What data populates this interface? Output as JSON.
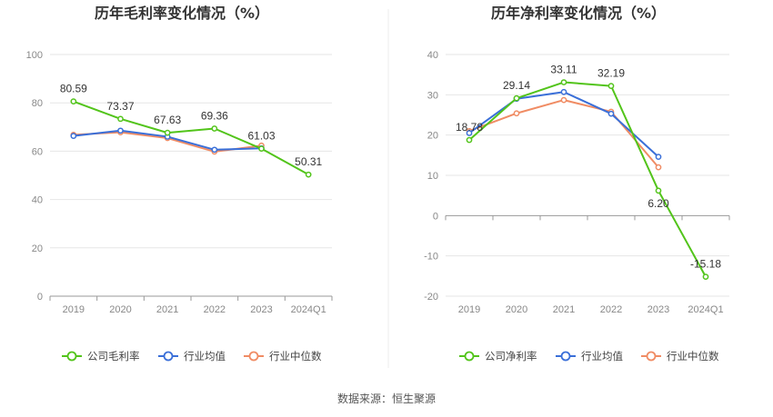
{
  "source": "数据来源：恒生聚源",
  "chart_data": [
    {
      "type": "line",
      "title": "历年毛利率变化情况（%）",
      "categories": [
        "2019",
        "2020",
        "2021",
        "2022",
        "2023",
        "2024Q1"
      ],
      "ylim": [
        0,
        100
      ],
      "yticks": [
        0,
        20,
        40,
        60,
        80,
        100
      ],
      "grid": true,
      "legend_position": "bottom",
      "series": [
        {
          "name": "公司毛利率",
          "color": "#52c41a",
          "values": [
            80.59,
            73.37,
            67.63,
            69.36,
            61.03,
            50.31
          ],
          "labels": [
            "80.59",
            "73.37",
            "67.63",
            "69.36",
            "61.03",
            "50.31"
          ]
        },
        {
          "name": "行业均值",
          "color": "#3a6fd8",
          "values": [
            66.3,
            68.5,
            66.0,
            60.6,
            61.2,
            null
          ]
        },
        {
          "name": "行业中位数",
          "color": "#f08c64",
          "values": [
            66.8,
            67.8,
            65.4,
            59.8,
            62.3,
            null
          ]
        }
      ]
    },
    {
      "type": "line",
      "title": "历年净利率变化情况（%）",
      "categories": [
        "2019",
        "2020",
        "2021",
        "2022",
        "2023",
        "2024Q1"
      ],
      "ylim": [
        -20,
        40
      ],
      "yticks": [
        -20,
        -10,
        0,
        10,
        20,
        30,
        40
      ],
      "grid": true,
      "legend_position": "bottom",
      "series": [
        {
          "name": "公司净利率",
          "color": "#52c41a",
          "values": [
            18.78,
            29.14,
            33.11,
            32.19,
            6.2,
            -15.18
          ],
          "labels": [
            "18.78",
            "29.14",
            "33.11",
            "32.19",
            "6.20",
            "-15.18"
          ]
        },
        {
          "name": "行业均值",
          "color": "#3a6fd8",
          "values": [
            20.5,
            29.0,
            30.7,
            25.3,
            14.6,
            null
          ]
        },
        {
          "name": "行业中位数",
          "color": "#f08c64",
          "values": [
            21.0,
            25.4,
            28.7,
            25.8,
            12.0,
            null
          ]
        }
      ]
    }
  ]
}
